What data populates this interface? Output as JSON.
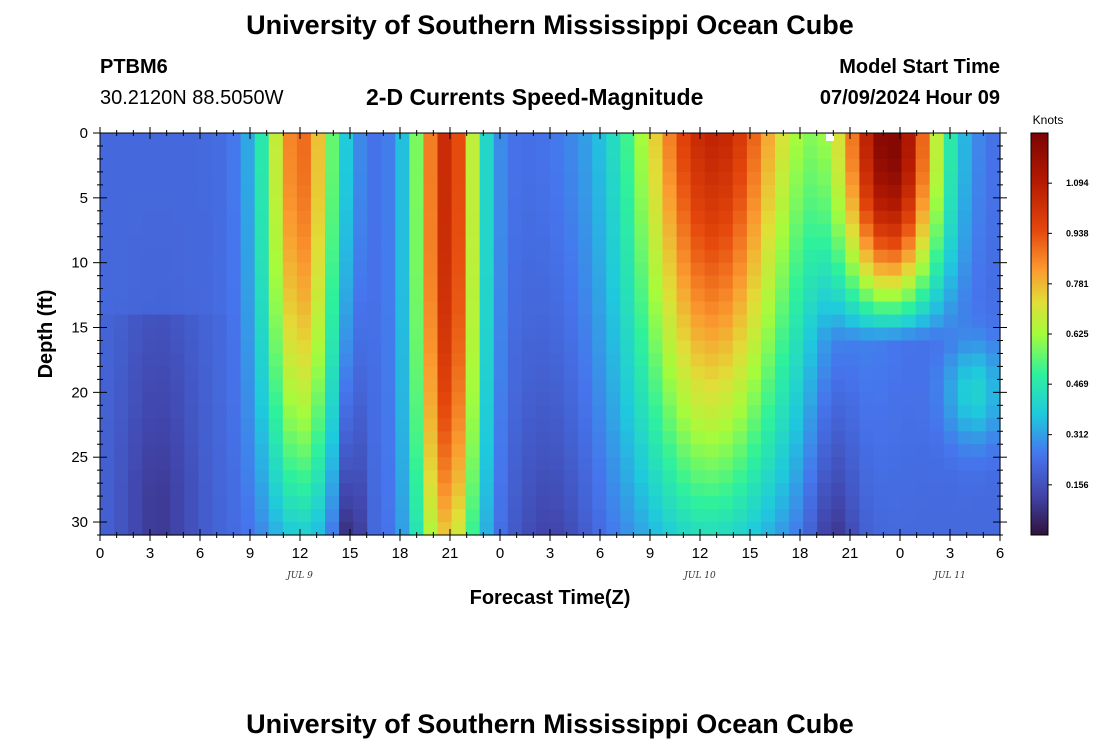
{
  "header": {
    "title": "University of Southern Mississippi Ocean Cube",
    "station_id": "PTBM6",
    "station_coords": "30.2120N  88.5050W",
    "subtitle": "2-D Currents Speed-Magnitude",
    "model_start_label": "Model Start Time",
    "model_start_value": "07/09/2024 Hour 09"
  },
  "footer": {
    "title": "University of Southern Mississippi Ocean Cube"
  },
  "chart_data": {
    "type": "heatmap",
    "title": "2-D Currents Speed-Magnitude",
    "xlabel": "Forecast Time(Z)",
    "ylabel": "Depth (ft)",
    "x_ticks": [
      "0",
      "3",
      "6",
      "9",
      "12",
      "15",
      "18",
      "21",
      "0",
      "3",
      "6",
      "9",
      "12",
      "15",
      "18",
      "21",
      "0",
      "3",
      "6"
    ],
    "x_date_labels": [
      {
        "label": "JUL 9",
        "hour_index": 12
      },
      {
        "label": "JUL 10",
        "hour_index": 36
      },
      {
        "label": "JUL 11",
        "hour_index": 51
      }
    ],
    "x_range_hours": [
      0,
      54
    ],
    "y_ticks": [
      0,
      5,
      10,
      15,
      20,
      25,
      30
    ],
    "ylim": [
      0,
      31
    ],
    "y_inverted": true,
    "colorbar": {
      "unit": "Knots",
      "ticks": [
        "1.094",
        "0.938",
        "0.781",
        "0.625",
        "0.469",
        "0.312",
        "0.156"
      ],
      "tick_values": [
        1.094,
        0.938,
        0.781,
        0.625,
        0.469,
        0.312,
        0.156
      ],
      "range": [
        0,
        1.25
      ],
      "colormap": "turbo"
    },
    "grid": false
  }
}
